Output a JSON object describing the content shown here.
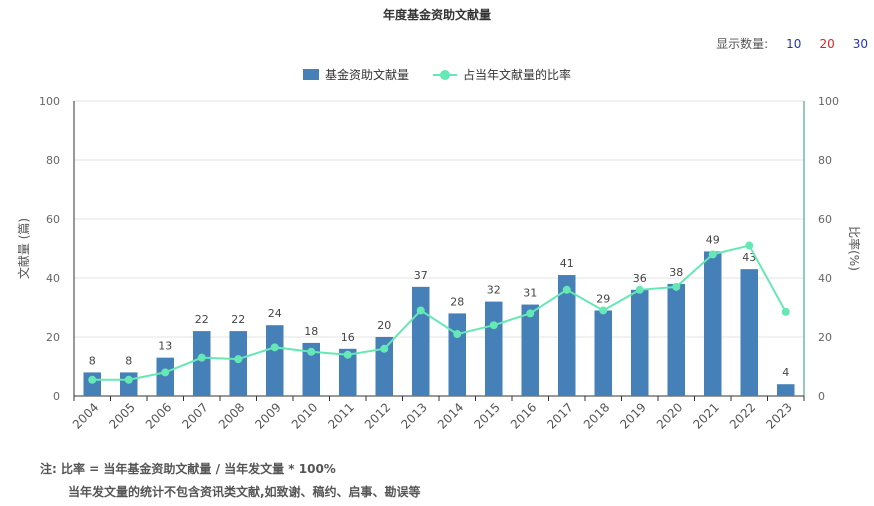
{
  "header": {
    "title": "年度基金资助文献量",
    "display_label": "显示数量:",
    "display_options": [
      {
        "label": "10",
        "color": "#2233cc"
      },
      {
        "label": "20",
        "color": "#dd2222"
      },
      {
        "label": "30",
        "color": "#2233cc"
      }
    ]
  },
  "notes": {
    "line1": "注:   比率 = 当年基金资助文献量 / 当年发文量 * 100%",
    "line2": "当年发文量的统计不包含资讯类文献,如致谢、稿约、启事、勘误等"
  },
  "chart_data": {
    "type": "bar",
    "categories": [
      "2004",
      "2005",
      "2006",
      "2007",
      "2008",
      "2009",
      "2010",
      "2011",
      "2012",
      "2013",
      "2014",
      "2015",
      "2016",
      "2017",
      "2018",
      "2019",
      "2020",
      "2021",
      "2022",
      "2023"
    ],
    "series": [
      {
        "name": "基金资助文献量",
        "type": "bar",
        "axis": "left",
        "color": "#4581b8",
        "values": [
          8,
          8,
          13,
          22,
          22,
          24,
          18,
          16,
          20,
          37,
          28,
          32,
          31,
          41,
          29,
          36,
          38,
          49,
          43,
          4
        ]
      },
      {
        "name": "占当年文献量的比率",
        "type": "line",
        "axis": "right",
        "color": "#66e8b5",
        "values": [
          5.5,
          5.5,
          8,
          13,
          12.5,
          16.5,
          15,
          14,
          16,
          29,
          21,
          24,
          28,
          36,
          29,
          36,
          37,
          48,
          51,
          28.5
        ]
      }
    ],
    "ylabel": "文献量 (篇)",
    "y2label": "比率(%)",
    "ylim": [
      0,
      100
    ],
    "y2lim": [
      0,
      100
    ],
    "yticks": [
      0,
      20,
      40,
      60,
      80,
      100
    ],
    "y2ticks": [
      0,
      20,
      40,
      60,
      80,
      100
    ],
    "grid": true,
    "legend_position": "top-center"
  }
}
